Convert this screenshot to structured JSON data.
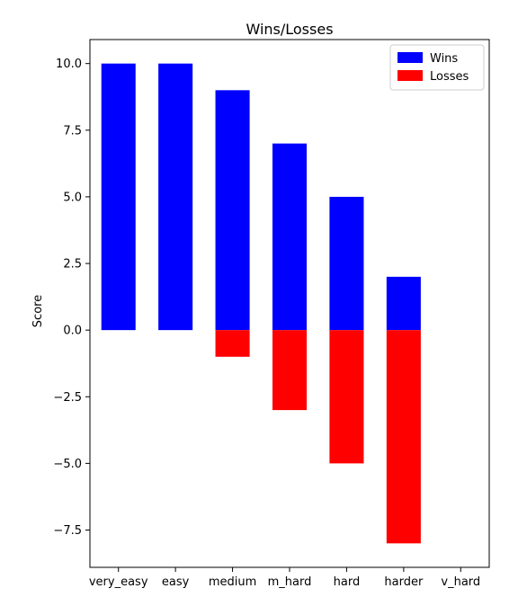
{
  "chart_data": {
    "type": "bar",
    "title": "Wins/Losses",
    "xlabel": "",
    "ylabel": "Score",
    "categories": [
      "very_easy",
      "easy",
      "medium",
      "m_hard",
      "hard",
      "harder",
      "v_hard"
    ],
    "series": [
      {
        "name": "Wins",
        "color": "#0000ff",
        "values": [
          10,
          10,
          9,
          7,
          5,
          2,
          0
        ]
      },
      {
        "name": "Losses",
        "color": "#ff0000",
        "values": [
          0,
          0,
          -1,
          -3,
          -5,
          -8,
          0
        ]
      }
    ],
    "ylim": [
      -8.9,
      10.9
    ],
    "yticks": [
      10.0,
      7.5,
      5.0,
      2.5,
      0.0,
      -2.5,
      -5.0,
      -7.5
    ],
    "ytick_labels": [
      "10.0",
      "7.5",
      "5.0",
      "2.5",
      "0.0",
      "−2.5",
      "−5.0",
      "−7.5"
    ],
    "grid": false,
    "legend_position": "top-right"
  }
}
